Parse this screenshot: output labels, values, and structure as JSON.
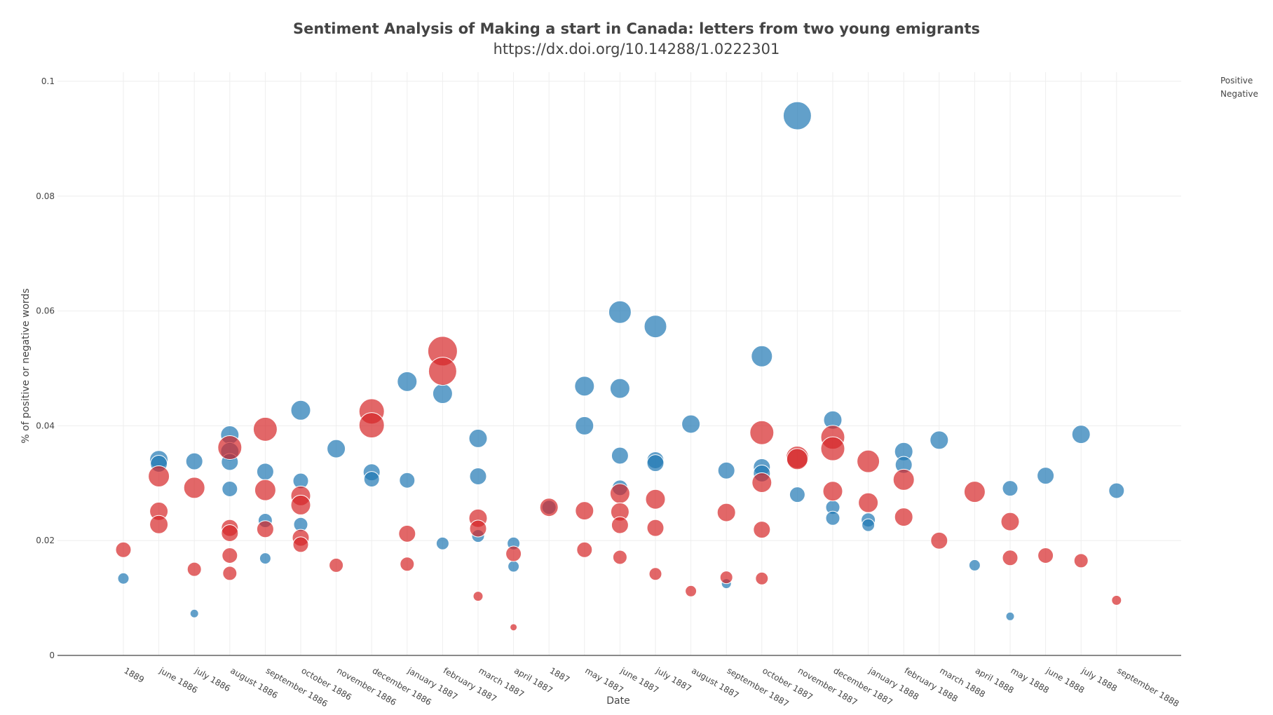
{
  "chart_data": {
    "type": "scatter",
    "title": "Sentiment Analysis of Making a start in Canada: letters from two young emigrants",
    "subtitle": "https://dx.doi.org/10.14288/1.0222301",
    "xlabel": "Date",
    "ylabel": "% of positive or negative words",
    "ylim": [
      0,
      0.1
    ],
    "yticks": [
      "0",
      "0.02",
      "0.04",
      "0.06",
      "0.08",
      "0.1"
    ],
    "grid": true,
    "legend_position": "top-right",
    "categories": [
      "1889",
      "june 1886",
      "july 1886",
      "august 1886",
      "september 1886",
      "october 1886",
      "november 1886",
      "december 1886",
      "january 1887",
      "february 1887",
      "march 1887",
      "april 1887",
      "1887",
      "may 1887",
      "june 1887",
      "july 1887",
      "august 1887",
      "september 1887",
      "october 1887",
      "november 1887",
      "december 1887",
      "january 1888",
      "february 1888",
      "march 1888",
      "april 1888",
      "may 1888",
      "june 1888",
      "july 1888",
      "september 1888"
    ],
    "series": [
      {
        "name": "Positive",
        "color": "#1f77b4",
        "points": [
          {
            "x": "1889",
            "y": 0.0134,
            "size": 8
          },
          {
            "x": "june 1886",
            "y": 0.0341,
            "size": 13
          },
          {
            "x": "june 1886",
            "y": 0.0334,
            "size": 12
          },
          {
            "x": "july 1886",
            "y": 0.0073,
            "size": 6
          },
          {
            "x": "july 1886",
            "y": 0.0338,
            "size": 12
          },
          {
            "x": "august 1886",
            "y": 0.0384,
            "size": 13
          },
          {
            "x": "august 1886",
            "y": 0.0355,
            "size": 13
          },
          {
            "x": "august 1886",
            "y": 0.0337,
            "size": 12
          },
          {
            "x": "august 1886",
            "y": 0.029,
            "size": 11
          },
          {
            "x": "september 1886",
            "y": 0.0169,
            "size": 8
          },
          {
            "x": "september 1886",
            "y": 0.0235,
            "size": 10
          },
          {
            "x": "september 1886",
            "y": 0.032,
            "size": 12
          },
          {
            "x": "october 1886",
            "y": 0.0427,
            "size": 14
          },
          {
            "x": "october 1886",
            "y": 0.0304,
            "size": 11
          },
          {
            "x": "october 1886",
            "y": 0.0228,
            "size": 10
          },
          {
            "x": "november 1886",
            "y": 0.036,
            "size": 13
          },
          {
            "x": "december 1886",
            "y": 0.0319,
            "size": 12
          },
          {
            "x": "december 1886",
            "y": 0.0307,
            "size": 11
          },
          {
            "x": "january 1887",
            "y": 0.0477,
            "size": 14
          },
          {
            "x": "january 1887",
            "y": 0.0305,
            "size": 11
          },
          {
            "x": "february 1887",
            "y": 0.0456,
            "size": 14
          },
          {
            "x": "february 1887",
            "y": 0.0195,
            "size": 9
          },
          {
            "x": "march 1887",
            "y": 0.0378,
            "size": 13
          },
          {
            "x": "march 1887",
            "y": 0.0312,
            "size": 12
          },
          {
            "x": "march 1887",
            "y": 0.0208,
            "size": 9
          },
          {
            "x": "april 1887",
            "y": 0.0195,
            "size": 9
          },
          {
            "x": "april 1887",
            "y": 0.0155,
            "size": 8
          },
          {
            "x": "1887",
            "y": 0.0258,
            "size": 10
          },
          {
            "x": "may 1887",
            "y": 0.0469,
            "size": 14
          },
          {
            "x": "may 1887",
            "y": 0.04,
            "size": 13
          },
          {
            "x": "june 1887",
            "y": 0.0598,
            "size": 16
          },
          {
            "x": "june 1887",
            "y": 0.0465,
            "size": 14
          },
          {
            "x": "june 1887",
            "y": 0.0348,
            "size": 12
          },
          {
            "x": "june 1887",
            "y": 0.0292,
            "size": 11
          },
          {
            "x": "july 1887",
            "y": 0.0573,
            "size": 16
          },
          {
            "x": "july 1887",
            "y": 0.034,
            "size": 12
          },
          {
            "x": "july 1887",
            "y": 0.0335,
            "size": 12
          },
          {
            "x": "august 1887",
            "y": 0.0403,
            "size": 13
          },
          {
            "x": "september 1887",
            "y": 0.0322,
            "size": 12
          },
          {
            "x": "september 1887",
            "y": 0.0125,
            "size": 7
          },
          {
            "x": "october 1887",
            "y": 0.0521,
            "size": 15
          },
          {
            "x": "october 1887",
            "y": 0.0328,
            "size": 12
          },
          {
            "x": "october 1887",
            "y": 0.0317,
            "size": 12
          },
          {
            "x": "november 1887",
            "y": 0.094,
            "size": 20
          },
          {
            "x": "november 1887",
            "y": 0.028,
            "size": 11
          },
          {
            "x": "december 1887",
            "y": 0.041,
            "size": 13
          },
          {
            "x": "december 1887",
            "y": 0.0258,
            "size": 10
          },
          {
            "x": "december 1887",
            "y": 0.0239,
            "size": 10
          },
          {
            "x": "january 1888",
            "y": 0.0236,
            "size": 10
          },
          {
            "x": "january 1888",
            "y": 0.0227,
            "size": 9
          },
          {
            "x": "february 1888",
            "y": 0.0355,
            "size": 13
          },
          {
            "x": "february 1888",
            "y": 0.0332,
            "size": 12
          },
          {
            "x": "march 1888",
            "y": 0.0375,
            "size": 13
          },
          {
            "x": "april 1888",
            "y": 0.0157,
            "size": 8
          },
          {
            "x": "may 1888",
            "y": 0.0291,
            "size": 11
          },
          {
            "x": "may 1888",
            "y": 0.0068,
            "size": 6
          },
          {
            "x": "june 1888",
            "y": 0.0313,
            "size": 12
          },
          {
            "x": "july 1888",
            "y": 0.0385,
            "size": 13
          },
          {
            "x": "september 1888",
            "y": 0.0287,
            "size": 11
          }
        ]
      },
      {
        "name": "Negative",
        "color": "#d62728",
        "points": [
          {
            "x": "1889",
            "y": 0.0184,
            "size": 11
          },
          {
            "x": "june 1886",
            "y": 0.0312,
            "size": 15
          },
          {
            "x": "june 1886",
            "y": 0.0251,
            "size": 13
          },
          {
            "x": "june 1886",
            "y": 0.0228,
            "size": 13
          },
          {
            "x": "july 1886",
            "y": 0.0292,
            "size": 15
          },
          {
            "x": "july 1886",
            "y": 0.015,
            "size": 10
          },
          {
            "x": "august 1886",
            "y": 0.0362,
            "size": 17
          },
          {
            "x": "august 1886",
            "y": 0.0222,
            "size": 12
          },
          {
            "x": "august 1886",
            "y": 0.0213,
            "size": 12
          },
          {
            "x": "august 1886",
            "y": 0.0174,
            "size": 11
          },
          {
            "x": "august 1886",
            "y": 0.0143,
            "size": 10
          },
          {
            "x": "september 1886",
            "y": 0.0394,
            "size": 17
          },
          {
            "x": "september 1886",
            "y": 0.0288,
            "size": 15
          },
          {
            "x": "september 1886",
            "y": 0.022,
            "size": 12
          },
          {
            "x": "october 1886",
            "y": 0.0278,
            "size": 14
          },
          {
            "x": "october 1886",
            "y": 0.0262,
            "size": 14
          },
          {
            "x": "october 1886",
            "y": 0.0205,
            "size": 12
          },
          {
            "x": "october 1886",
            "y": 0.0193,
            "size": 11
          },
          {
            "x": "november 1886",
            "y": 0.0157,
            "size": 10
          },
          {
            "x": "december 1886",
            "y": 0.0425,
            "size": 18
          },
          {
            "x": "december 1886",
            "y": 0.0401,
            "size": 18
          },
          {
            "x": "january 1887",
            "y": 0.0212,
            "size": 12
          },
          {
            "x": "january 1887",
            "y": 0.0159,
            "size": 10
          },
          {
            "x": "february 1887",
            "y": 0.053,
            "size": 21
          },
          {
            "x": "february 1887",
            "y": 0.0495,
            "size": 20
          },
          {
            "x": "march 1887",
            "y": 0.0239,
            "size": 13
          },
          {
            "x": "march 1887",
            "y": 0.0221,
            "size": 12
          },
          {
            "x": "march 1887",
            "y": 0.0103,
            "size": 7
          },
          {
            "x": "april 1887",
            "y": 0.0177,
            "size": 11
          },
          {
            "x": "april 1887",
            "y": 0.0049,
            "size": 5
          },
          {
            "x": "1887",
            "y": 0.0258,
            "size": 13
          },
          {
            "x": "may 1887",
            "y": 0.0252,
            "size": 13
          },
          {
            "x": "may 1887",
            "y": 0.0184,
            "size": 11
          },
          {
            "x": "june 1887",
            "y": 0.0282,
            "size": 14
          },
          {
            "x": "june 1887",
            "y": 0.025,
            "size": 13
          },
          {
            "x": "june 1887",
            "y": 0.0227,
            "size": 12
          },
          {
            "x": "june 1887",
            "y": 0.0171,
            "size": 10
          },
          {
            "x": "july 1887",
            "y": 0.0272,
            "size": 14
          },
          {
            "x": "july 1887",
            "y": 0.0222,
            "size": 12
          },
          {
            "x": "july 1887",
            "y": 0.0142,
            "size": 9
          },
          {
            "x": "august 1887",
            "y": 0.0112,
            "size": 8
          },
          {
            "x": "september 1887",
            "y": 0.0249,
            "size": 13
          },
          {
            "x": "september 1887",
            "y": 0.0136,
            "size": 9
          },
          {
            "x": "october 1887",
            "y": 0.0388,
            "size": 17
          },
          {
            "x": "october 1887",
            "y": 0.0301,
            "size": 14
          },
          {
            "x": "october 1887",
            "y": 0.0219,
            "size": 12
          },
          {
            "x": "october 1887",
            "y": 0.0134,
            "size": 9
          },
          {
            "x": "november 1887",
            "y": 0.0345,
            "size": 16
          },
          {
            "x": "november 1887",
            "y": 0.0342,
            "size": 15
          },
          {
            "x": "december 1887",
            "y": 0.038,
            "size": 17
          },
          {
            "x": "december 1887",
            "y": 0.036,
            "size": 17
          },
          {
            "x": "december 1887",
            "y": 0.0286,
            "size": 14
          },
          {
            "x": "january 1888",
            "y": 0.0338,
            "size": 16
          },
          {
            "x": "january 1888",
            "y": 0.0266,
            "size": 14
          },
          {
            "x": "february 1888",
            "y": 0.0306,
            "size": 15
          },
          {
            "x": "february 1888",
            "y": 0.0241,
            "size": 13
          },
          {
            "x": "march 1888",
            "y": 0.02,
            "size": 12
          },
          {
            "x": "april 1888",
            "y": 0.0285,
            "size": 15
          },
          {
            "x": "may 1888",
            "y": 0.0233,
            "size": 13
          },
          {
            "x": "may 1888",
            "y": 0.017,
            "size": 11
          },
          {
            "x": "june 1888",
            "y": 0.0174,
            "size": 11
          },
          {
            "x": "july 1888",
            "y": 0.0165,
            "size": 10
          },
          {
            "x": "september 1888",
            "y": 0.0096,
            "size": 7
          }
        ]
      }
    ]
  }
}
